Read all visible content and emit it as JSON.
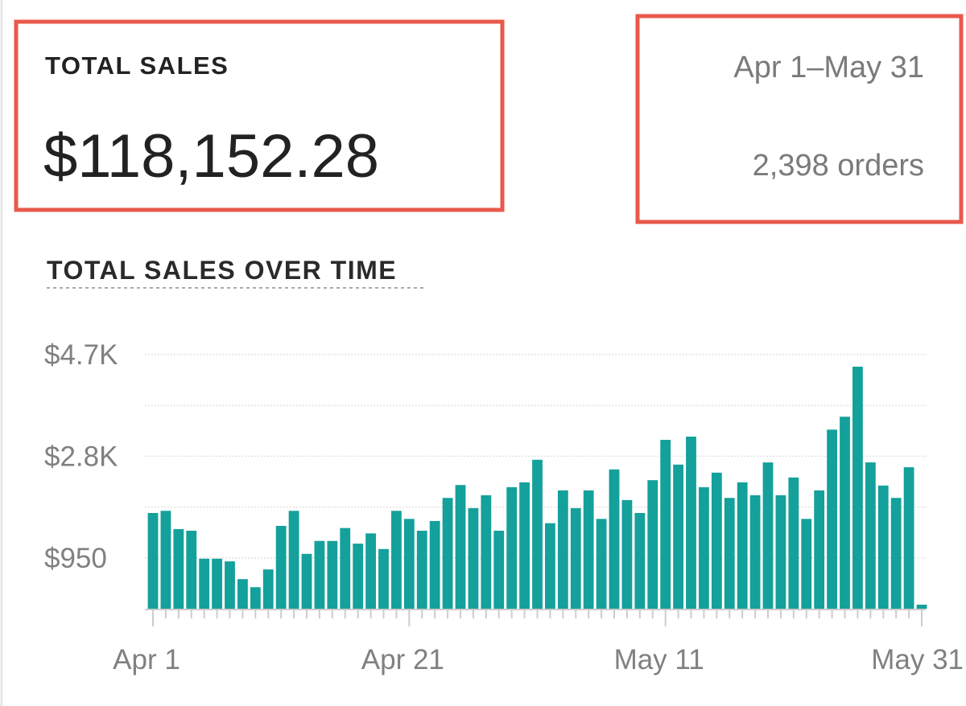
{
  "summary": {
    "label": "TOTAL SALES",
    "value": "$118,152.28"
  },
  "period": {
    "range": "Apr 1–May 31",
    "orders": "2,398 orders"
  },
  "chart_data": {
    "type": "bar",
    "title": "TOTAL SALES OVER TIME",
    "categories": [
      "Apr 1",
      null,
      null,
      null,
      null,
      null,
      null,
      null,
      null,
      null,
      null,
      null,
      null,
      null,
      null,
      null,
      null,
      null,
      null,
      null,
      "Apr 21",
      null,
      null,
      null,
      null,
      null,
      null,
      null,
      null,
      null,
      null,
      null,
      null,
      null,
      null,
      null,
      null,
      null,
      null,
      null,
      "May 11",
      null,
      null,
      null,
      null,
      null,
      null,
      null,
      null,
      null,
      null,
      null,
      null,
      null,
      null,
      null,
      null,
      null,
      null,
      null,
      "May 31"
    ],
    "values": [
      1780,
      1820,
      1480,
      1450,
      930,
      930,
      880,
      550,
      400,
      730,
      1540,
      1820,
      1020,
      1260,
      1260,
      1500,
      1210,
      1400,
      1110,
      1820,
      1670,
      1450,
      1630,
      2060,
      2300,
      1870,
      2110,
      1450,
      2260,
      2350,
      2770,
      1590,
      2200,
      1870,
      2200,
      1670,
      2590,
      2020,
      1780,
      2390,
      3140,
      2680,
      3200,
      2260,
      2530,
      2060,
      2350,
      2110,
      2720,
      2110,
      2440,
      1670,
      2200,
      3330,
      3570,
      4500,
      2720,
      2290,
      2060,
      2630,
      75
    ],
    "color": "#14a09b",
    "ylim": [
      0,
      4725
    ],
    "yticks": [
      {
        "value": 945,
        "label": "$950"
      },
      {
        "value": 2835,
        "label": "$2.8K"
      },
      {
        "value": 4725,
        "label": "$4.7K"
      }
    ],
    "minor_gridlines": [
      1890,
      3780
    ],
    "grid": true
  }
}
